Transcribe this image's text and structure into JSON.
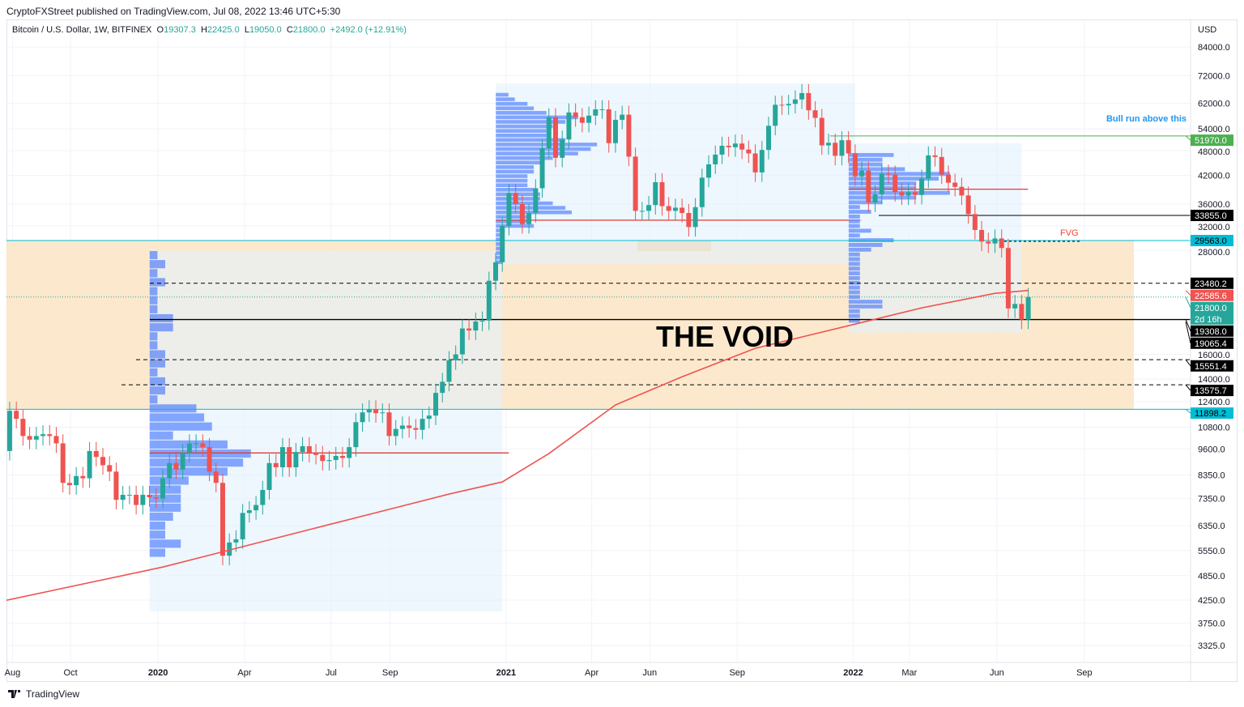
{
  "header": {
    "published": "CryptoFXStreet published on TradingView.com, Jul 08, 2022 13:46 UTC+5:30",
    "symbol": "Bitcoin / U.S. Dollar, 1W, BITFINEX",
    "o_label": "O",
    "o": "19307.3",
    "h_label": "H",
    "h": "22425.0",
    "l_label": "L",
    "l": "19050.0",
    "c_label": "C",
    "c": "21800.0",
    "change": "+2492.0 (+12.91%)"
  },
  "footer": {
    "brand": "TradingView",
    "logo_icon": "tradingview-logo-icon"
  },
  "chart_data": {
    "type": "candlestick",
    "scale": "log",
    "currency": "USD",
    "grid": true,
    "y_ticks": [
      "84000.0",
      "72000.0",
      "62000.0",
      "54000.0",
      "48000.0",
      "42000.0",
      "36000.0",
      "32000.0",
      "28000.0",
      "16000.0",
      "14000.0",
      "12400.0",
      "10800.0",
      "9600.0",
      "8350.0",
      "7350.0",
      "6350.0",
      "5550.0",
      "4850.0",
      "4250.0",
      "3750.0",
      "3325.0"
    ],
    "x_ticks": [
      [
        "Aug",
        "2019-08-01"
      ],
      [
        "Oct",
        "2019-10-01"
      ],
      [
        "2020",
        "2020-01-01"
      ],
      [
        "Apr",
        "2020-04-01"
      ],
      [
        "Jul",
        "2020-07-01"
      ],
      [
        "Sep",
        "2020-09-01"
      ],
      [
        "2021",
        "2021-01-01"
      ],
      [
        "Apr",
        "2021-04-01"
      ],
      [
        "Jun",
        "2021-06-01"
      ],
      [
        "Sep",
        "2021-09-01"
      ],
      [
        "2022",
        "2022-01-01"
      ],
      [
        "Mar",
        "2022-03-01"
      ],
      [
        "Jun",
        "2022-06-01"
      ],
      [
        "Sep",
        "2022-09-01"
      ]
    ],
    "weekly_closes": [
      [
        "2019-07-22",
        9500
      ],
      [
        "2019-07-29",
        11800
      ],
      [
        "2019-08-05",
        11300
      ],
      [
        "2019-08-12",
        10300
      ],
      [
        "2019-08-19",
        10100
      ],
      [
        "2019-08-26",
        10300
      ],
      [
        "2019-09-02",
        10400
      ],
      [
        "2019-09-09",
        10300
      ],
      [
        "2019-09-16",
        9900
      ],
      [
        "2019-09-23",
        8000
      ],
      [
        "2019-09-30",
        7900
      ],
      [
        "2019-10-07",
        8300
      ],
      [
        "2019-10-14",
        8200
      ],
      [
        "2019-10-21",
        9500
      ],
      [
        "2019-10-28",
        9200
      ],
      [
        "2019-11-04",
        8800
      ],
      [
        "2019-11-11",
        8500
      ],
      [
        "2019-11-18",
        7300
      ],
      [
        "2019-11-25",
        7500
      ],
      [
        "2019-12-02",
        7500
      ],
      [
        "2019-12-09",
        7100
      ],
      [
        "2019-12-16",
        7500
      ],
      [
        "2019-12-23",
        7400
      ],
      [
        "2019-12-30",
        7350
      ],
      [
        "2020-01-06",
        8200
      ],
      [
        "2020-01-13",
        8900
      ],
      [
        "2020-01-20",
        8600
      ],
      [
        "2020-01-27",
        9400
      ],
      [
        "2020-02-03",
        9900
      ],
      [
        "2020-02-10",
        9900
      ],
      [
        "2020-02-17",
        9700
      ],
      [
        "2020-02-24",
        8500
      ],
      [
        "2020-03-02",
        8000
      ],
      [
        "2020-03-09",
        5400
      ],
      [
        "2020-03-16",
        5800
      ],
      [
        "2020-03-23",
        5900
      ],
      [
        "2020-03-30",
        6800
      ],
      [
        "2020-04-06",
        6900
      ],
      [
        "2020-04-13",
        7100
      ],
      [
        "2020-04-20",
        7700
      ],
      [
        "2020-04-27",
        8900
      ],
      [
        "2020-05-04",
        8700
      ],
      [
        "2020-05-11",
        9700
      ],
      [
        "2020-05-18",
        8700
      ],
      [
        "2020-05-25",
        9450
      ],
      [
        "2020-06-01",
        9750
      ],
      [
        "2020-06-08",
        9400
      ],
      [
        "2020-06-15",
        9300
      ],
      [
        "2020-06-22",
        9000
      ],
      [
        "2020-06-29",
        9050
      ],
      [
        "2020-07-06",
        9250
      ],
      [
        "2020-07-13",
        9150
      ],
      [
        "2020-07-20",
        9700
      ],
      [
        "2020-07-27",
        11100
      ],
      [
        "2020-08-03",
        11700
      ],
      [
        "2020-08-10",
        11900
      ],
      [
        "2020-08-17",
        11650
      ],
      [
        "2020-08-24",
        11700
      ],
      [
        "2020-08-31",
        10300
      ],
      [
        "2020-09-07",
        10700
      ],
      [
        "2020-09-14",
        10900
      ],
      [
        "2020-09-21",
        10750
      ],
      [
        "2020-09-28",
        10650
      ],
      [
        "2020-10-05",
        11300
      ],
      [
        "2020-10-12",
        11500
      ],
      [
        "2020-10-19",
        13000
      ],
      [
        "2020-10-26",
        13800
      ],
      [
        "2020-11-02",
        15500
      ],
      [
        "2020-11-09",
        16000
      ],
      [
        "2020-11-16",
        18400
      ],
      [
        "2020-11-23",
        18200
      ],
      [
        "2020-11-30",
        19100
      ],
      [
        "2020-12-07",
        19200
      ],
      [
        "2020-12-14",
        23800
      ],
      [
        "2020-12-21",
        26300
      ],
      [
        "2020-12-28",
        32000
      ],
      [
        "2021-01-04",
        38200
      ],
      [
        "2021-01-11",
        36000
      ],
      [
        "2021-01-18",
        32300
      ],
      [
        "2021-01-25",
        34300
      ],
      [
        "2021-02-01",
        39200
      ],
      [
        "2021-02-08",
        48600
      ],
      [
        "2021-02-15",
        57500
      ],
      [
        "2021-02-22",
        46200
      ],
      [
        "2021-03-01",
        51000
      ],
      [
        "2021-03-08",
        59000
      ],
      [
        "2021-03-15",
        57500
      ],
      [
        "2021-03-22",
        55800
      ],
      [
        "2021-03-29",
        58000
      ],
      [
        "2021-04-05",
        60000
      ],
      [
        "2021-04-12",
        60000
      ],
      [
        "2021-04-19",
        50000
      ],
      [
        "2021-04-26",
        56700
      ],
      [
        "2021-05-03",
        58300
      ],
      [
        "2021-05-10",
        46500
      ],
      [
        "2021-05-17",
        34700
      ],
      [
        "2021-05-24",
        34700
      ],
      [
        "2021-05-31",
        35800
      ],
      [
        "2021-06-07",
        40500
      ],
      [
        "2021-06-14",
        35600
      ],
      [
        "2021-06-21",
        34700
      ],
      [
        "2021-06-28",
        35300
      ],
      [
        "2021-07-05",
        34300
      ],
      [
        "2021-07-12",
        31800
      ],
      [
        "2021-07-19",
        35400
      ],
      [
        "2021-07-26",
        41500
      ],
      [
        "2021-08-02",
        44600
      ],
      [
        "2021-08-09",
        47000
      ],
      [
        "2021-08-16",
        49300
      ],
      [
        "2021-08-23",
        48900
      ],
      [
        "2021-08-30",
        49900
      ],
      [
        "2021-09-06",
        48300
      ],
      [
        "2021-09-13",
        47300
      ],
      [
        "2021-09-20",
        42700
      ],
      [
        "2021-09-27",
        48200
      ],
      [
        "2021-10-04",
        54900
      ],
      [
        "2021-10-11",
        61500
      ],
      [
        "2021-10-18",
        61300
      ],
      [
        "2021-10-25",
        61800
      ],
      [
        "2021-11-01",
        63300
      ],
      [
        "2021-11-08",
        65500
      ],
      [
        "2021-11-15",
        59700
      ],
      [
        "2021-11-22",
        57300
      ],
      [
        "2021-11-29",
        49400
      ],
      [
        "2021-12-06",
        50100
      ],
      [
        "2021-12-13",
        46700
      ],
      [
        "2021-12-20",
        50800
      ],
      [
        "2021-12-27",
        47300
      ],
      [
        "2022-01-03",
        41800
      ],
      [
        "2022-01-10",
        43100
      ],
      [
        "2022-01-17",
        36300
      ],
      [
        "2022-01-24",
        37900
      ],
      [
        "2022-01-31",
        42400
      ],
      [
        "2022-02-07",
        42200
      ],
      [
        "2022-02-14",
        38400
      ],
      [
        "2022-02-21",
        37700
      ],
      [
        "2022-02-28",
        38400
      ],
      [
        "2022-03-07",
        37800
      ],
      [
        "2022-03-14",
        41300
      ],
      [
        "2022-03-21",
        46800
      ],
      [
        "2022-03-28",
        46400
      ],
      [
        "2022-04-04",
        42200
      ],
      [
        "2022-04-11",
        40400
      ],
      [
        "2022-04-18",
        39500
      ],
      [
        "2022-04-25",
        37700
      ],
      [
        "2022-05-02",
        34100
      ],
      [
        "2022-05-09",
        31300
      ],
      [
        "2022-05-16",
        29400
      ],
      [
        "2022-05-23",
        29100
      ],
      [
        "2022-05-30",
        29900
      ],
      [
        "2022-06-06",
        28400
      ],
      [
        "2022-06-13",
        20500
      ],
      [
        "2022-06-20",
        21000
      ],
      [
        "2022-06-27",
        19300
      ],
      [
        "2022-07-04",
        21800
      ]
    ],
    "moving_average": [
      [
        "2019-07-22",
        4230
      ],
      [
        "2020-01-06",
        5080
      ],
      [
        "2020-06-22",
        6330
      ],
      [
        "2020-11-02",
        7530
      ],
      [
        "2020-12-28",
        8040
      ],
      [
        "2021-02-15",
        9370
      ],
      [
        "2021-04-26",
        12180
      ],
      [
        "2021-07-05",
        14180
      ],
      [
        "2021-09-20",
        16530
      ],
      [
        "2022-01-03",
        18840
      ],
      [
        "2022-03-14",
        20560
      ],
      [
        "2022-05-30",
        22240
      ],
      [
        "2022-07-04",
        22585.6
      ]
    ],
    "zone": {
      "top": 29563,
      "bottom": 11898.2,
      "color": "#fbe3c0"
    },
    "volume_profiles": [
      {
        "from": "2019-12-30",
        "to": "2020-12-28",
        "low": 4000,
        "high": 28000,
        "poc": 9400
      },
      {
        "from": "2020-12-28",
        "to": "2022-01-03",
        "low": 26000,
        "high": 69000,
        "poc": 33000
      },
      {
        "from": "2022-01-03",
        "to": "2022-06-27",
        "low": 18000,
        "high": 50000,
        "poc": 39000
      }
    ],
    "annotations": {
      "void": "THE VOID",
      "bull": "Bull run above this",
      "fvg": "FVG"
    },
    "price_labels": [
      {
        "value": "51970.0",
        "price": 51970,
        "bg": "#4caf50",
        "fg": "#fff"
      },
      {
        "value": "33855.0",
        "price": 33855,
        "bg": "#000",
        "fg": "#fff"
      },
      {
        "value": "29563.0",
        "price": 29563,
        "bg": "#00bcd4",
        "fg": "#000"
      },
      {
        "value": "23480.2",
        "price": 23480.2,
        "bg": "#000",
        "fg": "#fff"
      },
      {
        "value": "22585.6",
        "price": 22585.6,
        "bg": "#f05350",
        "fg": "#fff"
      },
      {
        "value": "21800.0",
        "price": 21800,
        "bg": "#26a69a",
        "fg": "#fff",
        "sub": "2d 16h"
      },
      {
        "value": "19308.0",
        "price": 19308,
        "bg": "#000",
        "fg": "#fff"
      },
      {
        "value": "19065.4",
        "price": 19065.4,
        "bg": "#000",
        "fg": "#fff"
      },
      {
        "value": "15551.4",
        "price": 15551.4,
        "bg": "#000",
        "fg": "#fff"
      },
      {
        "value": "13575.7",
        "price": 13575.7,
        "bg": "#000",
        "fg": "#fff"
      },
      {
        "value": "11898.2",
        "price": 11898.2,
        "bg": "#00bcd4",
        "fg": "#000"
      }
    ],
    "colors": {
      "up": "#26a69a",
      "down": "#ef5350",
      "ma": "#f05350",
      "profile": "#2962ff"
    }
  }
}
